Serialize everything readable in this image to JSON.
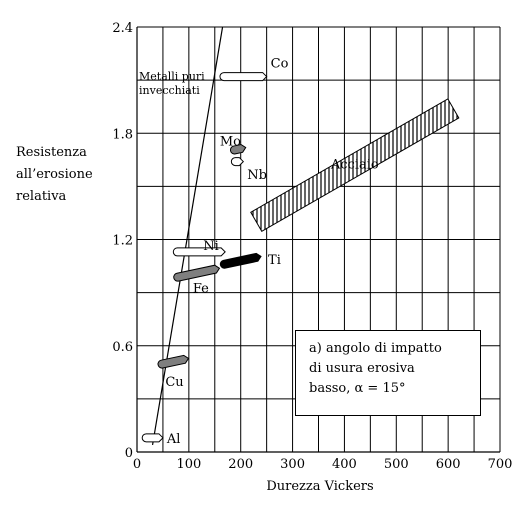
{
  "chart_data": {
    "type": "scatter",
    "xlabel": "Durezza Vickers",
    "ylabel_lines": [
      "Resistenza",
      "all’erosione",
      "relativa"
    ],
    "xlim": [
      0,
      700
    ],
    "ylim": [
      0,
      2.4
    ],
    "x_ticks": [
      0,
      100,
      200,
      300,
      400,
      500,
      600,
      700
    ],
    "y_ticks": [
      0,
      0.6,
      1.2,
      1.8,
      2.4
    ],
    "x_tick_labels": [
      "0",
      "100",
      "200",
      "300",
      "400",
      "500",
      "600",
      "700"
    ],
    "y_tick_labels": [
      "0",
      "0.6",
      "1.2",
      "1.8",
      "2.4"
    ],
    "grid": true,
    "annotation_lines": [
      "a) angolo di impatto",
      "di usura erosiva",
      "basso, α = 15°"
    ],
    "trend_line": {
      "from": [
        30,
        0.04
      ],
      "to": [
        165,
        2.4
      ]
    },
    "points": [
      {
        "label": "Co",
        "style": "white",
        "x": [
          160,
          250
        ],
        "y": 2.12,
        "label_at": [
          250,
          2.2
        ]
      },
      {
        "label": "Metalli puri invecchiati",
        "label_lines": [
          "Metalli puri",
          "invecchiati"
        ],
        "style": "none",
        "x": [
          0,
          0
        ],
        "y": 0,
        "label_at": [
          0,
          2.1
        ]
      },
      {
        "label": "Mo",
        "style": "gray",
        "x": [
          180,
          210
        ],
        "y": 1.71,
        "label_at": [
          152,
          1.76
        ]
      },
      {
        "label": "Nb",
        "style": "white",
        "x": [
          182,
          205
        ],
        "y": 1.64,
        "label_at": [
          205,
          1.57
        ]
      },
      {
        "label": "Ni",
        "style": "white",
        "x": [
          70,
          170
        ],
        "y": 1.13,
        "label_at": [
          120,
          1.17
        ]
      },
      {
        "label": "Ti",
        "style": "black",
        "x": [
          160,
          240
        ],
        "y": 1.08,
        "label_at": [
          245,
          1.09
        ]
      },
      {
        "label": "Fe",
        "style": "gray",
        "x": [
          70,
          160
        ],
        "y": 1.01,
        "label_at": [
          100,
          0.93
        ]
      },
      {
        "label": "Cu",
        "style": "gray",
        "x": [
          40,
          100
        ],
        "y": 0.51,
        "label_at": [
          47,
          0.4
        ]
      },
      {
        "label": "Al",
        "style": "white",
        "x": [
          10,
          50
        ],
        "y": 0.08,
        "label_at": [
          50,
          0.08
        ]
      }
    ],
    "bands": [
      {
        "label": "Acciaio",
        "from": [
          230,
          1.3
        ],
        "to": [
          610,
          1.94
        ],
        "label_at": [
          420,
          1.6
        ]
      }
    ]
  }
}
